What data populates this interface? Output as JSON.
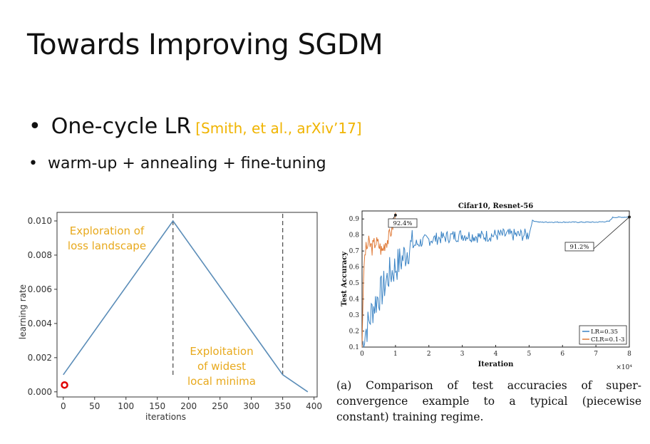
{
  "slide": {
    "title": "Towards Improving SGDM",
    "bullet1": "One-cycle LR",
    "citation": "[Smith, et al., arXiv’17]",
    "bullet2": "warm-up + annealing + fine-tuning",
    "bullet_glyph": "•"
  },
  "left_chart": {
    "annotations": {
      "exploration": [
        "Exploration of",
        "loss landscape"
      ],
      "exploitation": [
        "Exploitation",
        "of widest",
        "local minima"
      ]
    },
    "colors": {
      "line": "#5b8db8",
      "annotation": "#e8a91c",
      "marker": "#e00000"
    }
  },
  "right_chart": {
    "legend": [
      "LR=0.35",
      "CLR=0.1-3"
    ],
    "labels": [
      "92.4%",
      "91.2%"
    ],
    "x_multiplier": "×10⁴",
    "colors": {
      "lr": "#3a83c4",
      "clr": "#e07b39"
    }
  },
  "caption": "(a) Comparison of test accuracies of super-convergence example to a typical (piecewise constant) training regime.",
  "chart_data": [
    {
      "type": "line",
      "title": "",
      "xlabel": "iterations",
      "ylabel": "learning rate",
      "x": [
        0,
        175,
        350,
        390
      ],
      "y": [
        0.001,
        0.01,
        0.001,
        0.0
      ],
      "xlim": [
        -10,
        405
      ],
      "ylim": [
        -0.0003,
        0.0105
      ],
      "xticks": [
        0,
        50,
        100,
        150,
        200,
        250,
        300,
        350,
        400
      ],
      "yticks": [
        0.0,
        0.002,
        0.004,
        0.006,
        0.008,
        0.01
      ],
      "ytick_labels": [
        "0.000",
        "0.002",
        "0.004",
        "0.006",
        "0.008",
        "0.010"
      ],
      "vlines": [
        175,
        350
      ],
      "marker": {
        "x": 2,
        "y": 0.0004
      }
    },
    {
      "type": "line",
      "title": "Cifar10, Resnet-56",
      "xlabel": "Iteration",
      "ylabel": "Test Accuracy",
      "xlim": [
        0,
        8
      ],
      "ylim": [
        0.1,
        0.95
      ],
      "xticks": [
        0,
        1,
        2,
        3,
        4,
        5,
        6,
        7,
        8
      ],
      "yticks": [
        0.1,
        0.2,
        0.3,
        0.4,
        0.5,
        0.6,
        0.7,
        0.8,
        0.9
      ],
      "series": [
        {
          "name": "LR=0.35",
          "x": [
            0,
            0.1,
            0.2,
            0.3,
            0.4,
            0.5,
            0.6,
            0.7,
            0.8,
            0.9,
            1.0,
            1.2,
            1.4,
            1.6,
            1.8,
            2.0,
            2.3,
            2.6,
            3.0,
            3.5,
            4.0,
            4.5,
            4.9,
            5.0,
            5.1,
            5.3,
            6.0,
            6.5,
            7.0,
            7.4,
            7.5,
            8.0
          ],
          "y": [
            0.1,
            0.2,
            0.25,
            0.33,
            0.38,
            0.42,
            0.45,
            0.5,
            0.55,
            0.57,
            0.6,
            0.65,
            0.72,
            0.74,
            0.76,
            0.77,
            0.78,
            0.79,
            0.8,
            0.79,
            0.8,
            0.8,
            0.8,
            0.8,
            0.89,
            0.88,
            0.88,
            0.88,
            0.88,
            0.885,
            0.91,
            0.912
          ]
        },
        {
          "name": "CLR=0.1-3",
          "x": [
            0,
            0.05,
            0.1,
            0.2,
            0.3,
            0.4,
            0.5,
            0.6,
            0.7,
            0.8,
            0.9,
            1.0
          ],
          "y": [
            0.1,
            0.6,
            0.7,
            0.75,
            0.72,
            0.76,
            0.74,
            0.7,
            0.76,
            0.78,
            0.85,
            0.924
          ]
        }
      ],
      "annotations": [
        {
          "text": "92.4%",
          "x": 1.0,
          "y": 0.924
        },
        {
          "text": "91.2%",
          "x": 8.0,
          "y": 0.912
        }
      ]
    }
  ]
}
